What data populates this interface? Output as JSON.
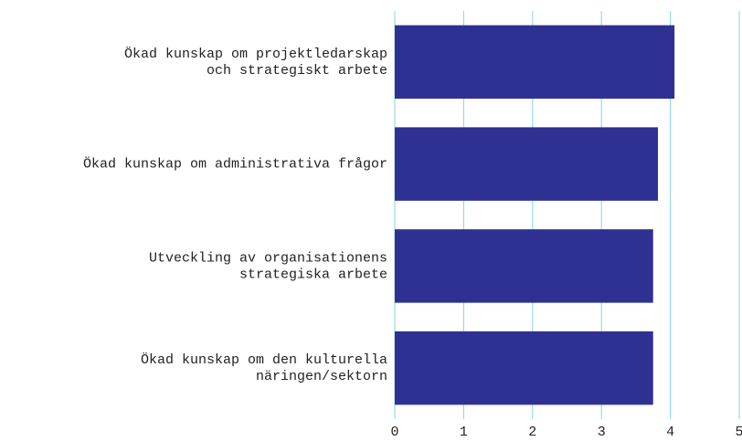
{
  "chart_data": {
    "type": "bar",
    "orientation": "horizontal",
    "categories": [
      "Ökad kunskap om projektledarskap\noch strategiskt arbete",
      "Ökad kunskap om administrativa frågor",
      "Utveckling av organisationens\nstrategiska arbete",
      "Ökad kunskap om den kulturella\nnäringen/sektorn"
    ],
    "values": [
      4.06,
      3.82,
      3.75,
      3.75
    ],
    "color": "#2e3192",
    "xlim": [
      0,
      5
    ],
    "xticks": [
      0,
      1,
      2,
      3,
      4,
      5
    ],
    "grid": true,
    "grid_color": "#86d3ea"
  }
}
